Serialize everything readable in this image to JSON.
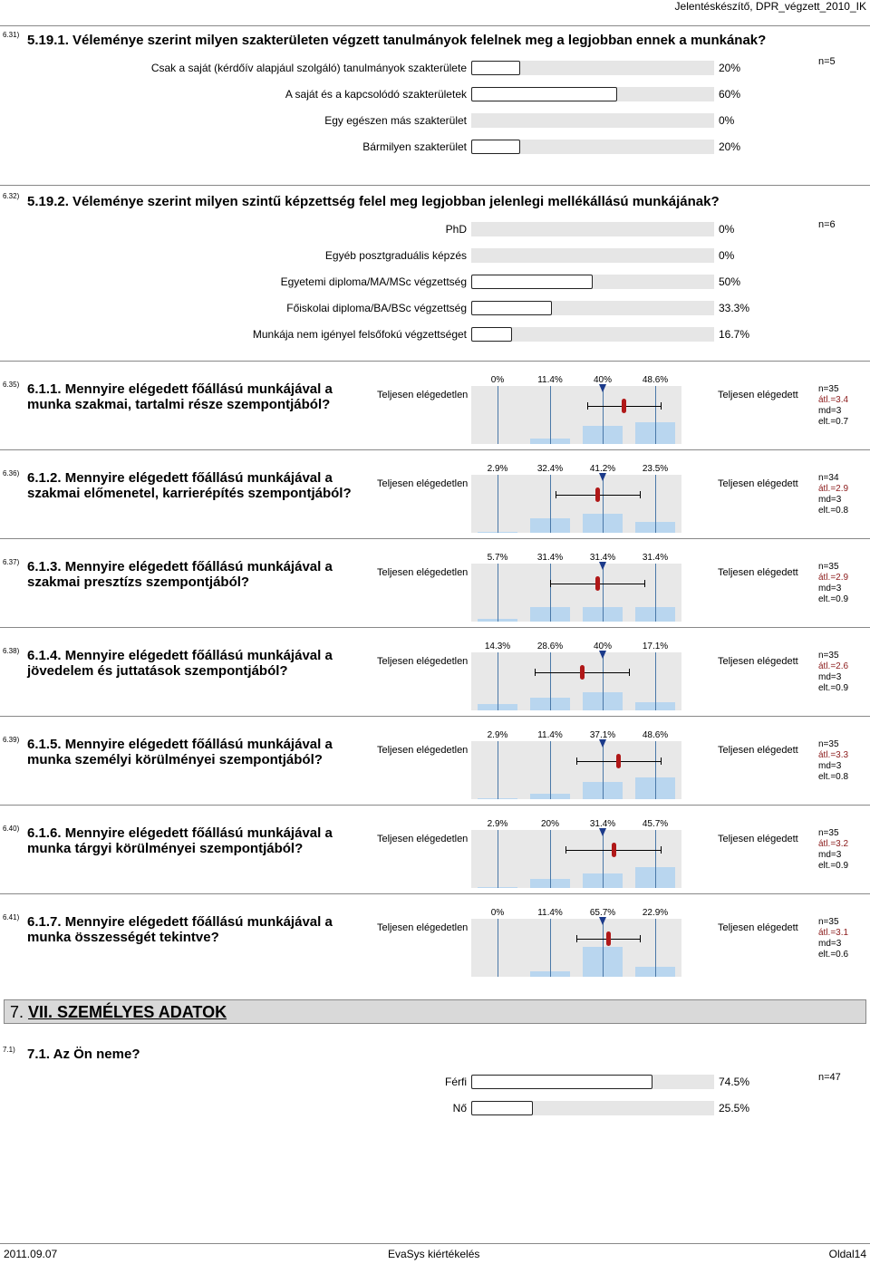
{
  "header": "Jelentéskészítő, DPR_végzett_2010_IK",
  "q631": {
    "num": "6.31)",
    "title": "5.19.1. Véleménye szerint milyen szakterületen végzett tanulmányok felelnek meg a legjobban ennek a munkának?",
    "n": "n=5",
    "items": [
      {
        "label": "Csak a saját (kérdőív alapjául szolgáló) tanulmányok szakterülete",
        "pct": "20%",
        "value": 20
      },
      {
        "label": "A saját és a kapcsolódó szakterületek",
        "pct": "60%",
        "value": 60
      },
      {
        "label": "Egy egészen más szakterület",
        "pct": "0%",
        "value": 0
      },
      {
        "label": "Bármilyen szakterület",
        "pct": "20%",
        "value": 20
      }
    ]
  },
  "q632": {
    "num": "6.32)",
    "title": "5.19.2. Véleménye szerint milyen szintű képzettség felel meg legjobban jelenlegi mellékállású munkájának?",
    "n": "n=6",
    "items": [
      {
        "label": "PhD",
        "pct": "0%",
        "value": 0
      },
      {
        "label": "Egyéb posztgraduális képzés",
        "pct": "0%",
        "value": 0
      },
      {
        "label": "Egyetemi diploma/MA/MSc végzettség",
        "pct": "50%",
        "value": 50
      },
      {
        "label": "Főiskolai diploma/BA/BSc végzettség",
        "pct": "33.3%",
        "value": 33.3
      },
      {
        "label": "Munkája nem igényel felsőfokú végzettséget",
        "pct": "16.7%",
        "value": 16.7
      }
    ]
  },
  "scale_questions": {
    "left_pole": "Teljesen elégedetlen",
    "right_pole": "Teljesen elégedett",
    "scale": [
      "1",
      "2",
      "3",
      "4"
    ],
    "items": [
      {
        "num": "6.35)",
        "title": "6.1.1. Mennyire elégedett főállású munkájával a munka szakmai, tartalmi része szempontjából?",
        "pcts": [
          "0%",
          "11.4%",
          "40%",
          "48.6%"
        ],
        "values": [
          0,
          11.4,
          40,
          48.6
        ],
        "n": "n=35",
        "avg": "átl.=3.4",
        "md": "md=3",
        "sd": "elt.=0.7",
        "avg_value": 3.4,
        "md_value": 3,
        "sd_value": 0.7
      },
      {
        "num": "6.36)",
        "title": "6.1.2. Mennyire elégedett főállású munkájával a szakmai előmenetel, karrierépítés szempontjából?",
        "pcts": [
          "2.9%",
          "32.4%",
          "41.2%",
          "23.5%"
        ],
        "values": [
          2.9,
          32.4,
          41.2,
          23.5
        ],
        "n": "n=34",
        "avg": "átl.=2.9",
        "md": "md=3",
        "sd": "elt.=0.8",
        "avg_value": 2.9,
        "md_value": 3,
        "sd_value": 0.8
      },
      {
        "num": "6.37)",
        "title": "6.1.3. Mennyire elégedett főállású munkájával a szakmai presztízs szempontjából?",
        "pcts": [
          "5.7%",
          "31.4%",
          "31.4%",
          "31.4%"
        ],
        "values": [
          5.7,
          31.4,
          31.4,
          31.4
        ],
        "n": "n=35",
        "avg": "átl.=2.9",
        "md": "md=3",
        "sd": "elt.=0.9",
        "avg_value": 2.9,
        "md_value": 3,
        "sd_value": 0.9
      },
      {
        "num": "6.38)",
        "title": "6.1.4. Mennyire elégedett főállású munkájával a jövedelem és juttatások szempontjából?",
        "pcts": [
          "14.3%",
          "28.6%",
          "40%",
          "17.1%"
        ],
        "values": [
          14.3,
          28.6,
          40,
          17.1
        ],
        "n": "n=35",
        "avg": "átl.=2.6",
        "md": "md=3",
        "sd": "elt.=0.9",
        "avg_value": 2.6,
        "md_value": 3,
        "sd_value": 0.9
      },
      {
        "num": "6.39)",
        "title": "6.1.5. Mennyire elégedett főállású munkájával a munka személyi körülményei szempontjából?",
        "pcts": [
          "2.9%",
          "11.4%",
          "37.1%",
          "48.6%"
        ],
        "values": [
          2.9,
          11.4,
          37.1,
          48.6
        ],
        "n": "n=35",
        "avg": "átl.=3.3",
        "md": "md=3",
        "sd": "elt.=0.8",
        "avg_value": 3.3,
        "md_value": 3,
        "sd_value": 0.8
      },
      {
        "num": "6.40)",
        "title": "6.1.6. Mennyire elégedett főállású munkájával a munka tárgyi körülményei szempontjából?",
        "pcts": [
          "2.9%",
          "20%",
          "31.4%",
          "45.7%"
        ],
        "values": [
          2.9,
          20,
          31.4,
          45.7
        ],
        "n": "n=35",
        "avg": "átl.=3.2",
        "md": "md=3",
        "sd": "elt.=0.9",
        "avg_value": 3.2,
        "md_value": 3,
        "sd_value": 0.9
      },
      {
        "num": "6.41)",
        "title": "6.1.7. Mennyire elégedett főállású munkájával a munka összességét tekintve?",
        "pcts": [
          "0%",
          "11.4%",
          "65.7%",
          "22.9%"
        ],
        "values": [
          0,
          11.4,
          65.7,
          22.9
        ],
        "n": "n=35",
        "avg": "átl.=3.1",
        "md": "md=3",
        "sd": "elt.=0.6",
        "avg_value": 3.1,
        "md_value": 3,
        "sd_value": 0.6
      }
    ]
  },
  "section": {
    "num": "7.",
    "title": "VII. SZEMÉLYES ADATOK"
  },
  "q71": {
    "num": "7.1)",
    "title": "7.1. Az Ön neme?",
    "n": "n=47",
    "items": [
      {
        "label": "Férfi",
        "pct": "74.5%",
        "value": 74.5
      },
      {
        "label": "Nő",
        "pct": "25.5%",
        "value": 25.5
      }
    ]
  },
  "footer": {
    "date": "2011.09.07",
    "center": "EvaSys kiértékelés",
    "page": "Oldal14"
  }
}
